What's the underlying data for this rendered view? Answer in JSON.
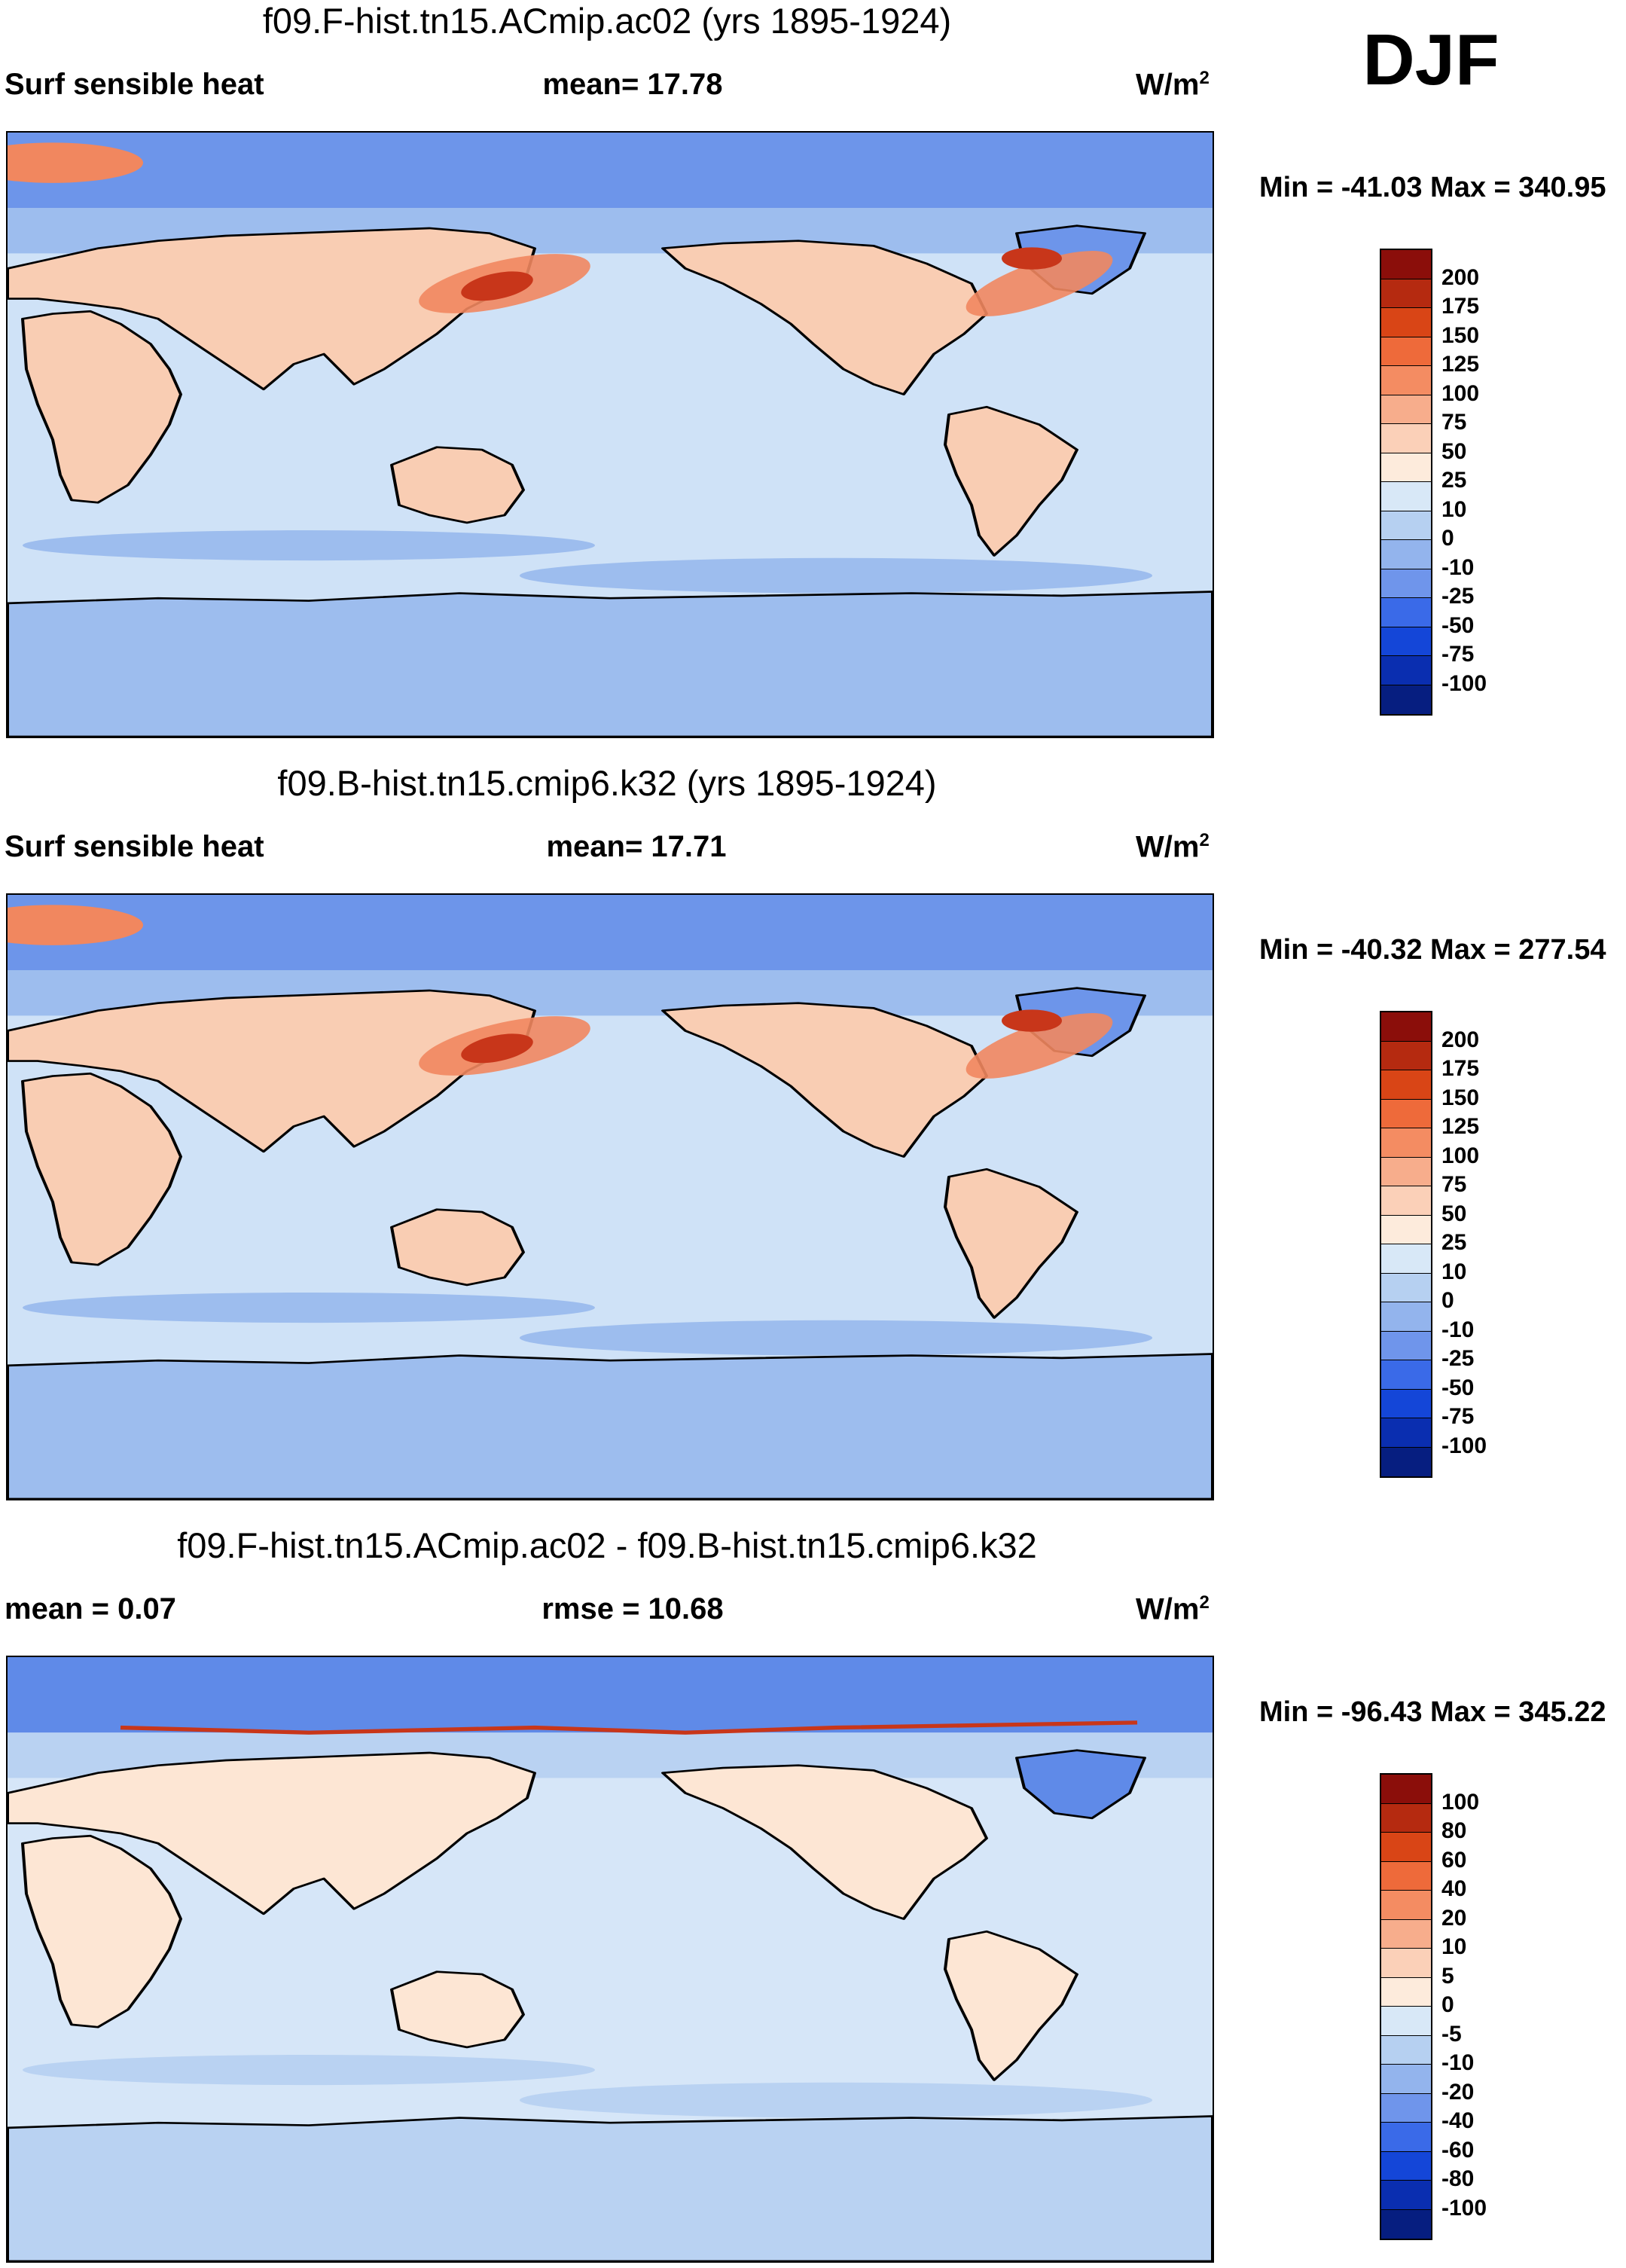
{
  "season": "DJF",
  "units_base": "W/m",
  "units_exp": "2",
  "panels": [
    {
      "title": "f09.F-hist.tn15.ACmip.ac02 (yrs 1895-1924)",
      "left_label": "Surf sensible heat",
      "center_label": "mean=  17.78",
      "minmax": "Min = -41.03 Max = 340.95",
      "colorbar": {
        "labels": [
          "200",
          "175",
          "150",
          "125",
          "100",
          "75",
          "50",
          "25",
          "10",
          "0",
          "-10",
          "-25",
          "-50",
          "-75",
          "-100"
        ],
        "colors": [
          "#8b0e0a",
          "#b52a10",
          "#d94516",
          "#ee6a3a",
          "#f48c62",
          "#f7ad8c",
          "#fbd0b8",
          "#fdebdc",
          "#d8e8f7",
          "#b6d0f1",
          "#93b4ed",
          "#6f95eb",
          "#3a6ae8",
          "#1446d8",
          "#0a2eb0",
          "#061e80"
        ]
      },
      "chart_data": {
        "type": "heatmap",
        "title": "f09.F-hist.tn15.ACmip.ac02 (yrs 1895-1924)",
        "variable": "Surf sensible heat",
        "mean": 17.78,
        "min": -41.03,
        "max": 340.95,
        "units": "W/m2",
        "contour_levels": [
          -100,
          -75,
          -50,
          -25,
          -10,
          0,
          10,
          25,
          50,
          75,
          100,
          125,
          150,
          175,
          200
        ]
      }
    },
    {
      "title": "f09.B-hist.tn15.cmip6.k32 (yrs 1895-1924)",
      "left_label": "Surf sensible heat",
      "center_label": "mean=  17.71",
      "minmax": "Min = -40.32 Max = 277.54",
      "colorbar": {
        "labels": [
          "200",
          "175",
          "150",
          "125",
          "100",
          "75",
          "50",
          "25",
          "10",
          "0",
          "-10",
          "-25",
          "-50",
          "-75",
          "-100"
        ],
        "colors": [
          "#8b0e0a",
          "#b52a10",
          "#d94516",
          "#ee6a3a",
          "#f48c62",
          "#f7ad8c",
          "#fbd0b8",
          "#fdebdc",
          "#d8e8f7",
          "#b6d0f1",
          "#93b4ed",
          "#6f95eb",
          "#3a6ae8",
          "#1446d8",
          "#0a2eb0",
          "#061e80"
        ]
      },
      "chart_data": {
        "type": "heatmap",
        "title": "f09.B-hist.tn15.cmip6.k32 (yrs 1895-1924)",
        "variable": "Surf sensible heat",
        "mean": 17.71,
        "min": -40.32,
        "max": 277.54,
        "units": "W/m2",
        "contour_levels": [
          -100,
          -75,
          -50,
          -25,
          -10,
          0,
          10,
          25,
          50,
          75,
          100,
          125,
          150,
          175,
          200
        ]
      }
    },
    {
      "title": "f09.F-hist.tn15.ACmip.ac02 - f09.B-hist.tn15.cmip6.k32",
      "left_label": "mean =   0.07",
      "center_label": "rmse =  10.68",
      "minmax": "Min = -96.43 Max = 345.22",
      "colorbar": {
        "labels": [
          "100",
          "80",
          "60",
          "40",
          "20",
          "10",
          "5",
          "0",
          "-5",
          "-10",
          "-20",
          "-40",
          "-60",
          "-80",
          "-100"
        ],
        "colors": [
          "#8b0e0a",
          "#b52a10",
          "#d94516",
          "#ee6a3a",
          "#f48c62",
          "#f7ad8c",
          "#fbd0b8",
          "#fdebdc",
          "#d8e8f7",
          "#b6d0f1",
          "#93b4ed",
          "#6f95eb",
          "#3a6ae8",
          "#1446d8",
          "#0a2eb0",
          "#061e80"
        ]
      },
      "chart_data": {
        "type": "heatmap",
        "title": "f09.F-hist.tn15.ACmip.ac02 - f09.B-hist.tn15.cmip6.k32",
        "mean": 0.07,
        "rmse": 10.68,
        "min": -96.43,
        "max": 345.22,
        "units": "W/m2",
        "contour_levels": [
          -100,
          -80,
          -60,
          -40,
          -20,
          -10,
          -5,
          0,
          5,
          10,
          20,
          40,
          60,
          80,
          100
        ]
      }
    }
  ]
}
